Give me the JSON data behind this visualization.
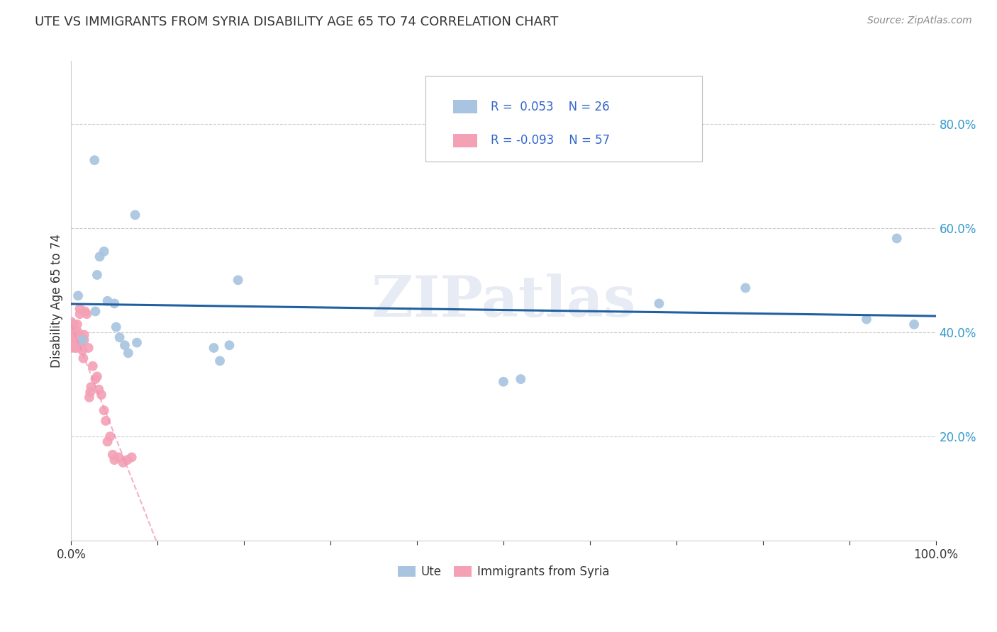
{
  "title": "UTE VS IMMIGRANTS FROM SYRIA DISABILITY AGE 65 TO 74 CORRELATION CHART",
  "source": "Source: ZipAtlas.com",
  "ylabel": "Disability Age 65 to 74",
  "xlabel": "",
  "xlim": [
    0,
    1.0
  ],
  "ylim": [
    0.0,
    0.92
  ],
  "xticks": [
    0.0,
    0.1,
    0.2,
    0.3,
    0.4,
    0.5,
    0.6,
    0.7,
    0.8,
    0.9,
    1.0
  ],
  "xticklabels": [
    "0.0%",
    "",
    "",
    "",
    "",
    "",
    "",
    "",
    "",
    "",
    "100.0%"
  ],
  "ytick_positions": [
    0.2,
    0.4,
    0.6,
    0.8
  ],
  "ytick_labels": [
    "20.0%",
    "40.0%",
    "60.0%",
    "80.0%"
  ],
  "legend_r_ute": "R =  0.053",
  "legend_n_ute": "N = 26",
  "legend_r_syria": "R = -0.093",
  "legend_n_syria": "N = 57",
  "ute_color": "#a8c4e0",
  "syria_color": "#f4a0b5",
  "ute_line_color": "#2060a0",
  "syria_line_color": "#f090b0",
  "watermark": "ZIPatlas",
  "background_color": "#ffffff",
  "ute_points_x": [
    0.008,
    0.013,
    0.027,
    0.028,
    0.03,
    0.033,
    0.038,
    0.042,
    0.05,
    0.052,
    0.056,
    0.062,
    0.066,
    0.074,
    0.076,
    0.165,
    0.172,
    0.183,
    0.193,
    0.5,
    0.52,
    0.68,
    0.78,
    0.92,
    0.955,
    0.975
  ],
  "ute_points_y": [
    0.47,
    0.385,
    0.73,
    0.44,
    0.51,
    0.545,
    0.555,
    0.46,
    0.455,
    0.41,
    0.39,
    0.375,
    0.36,
    0.625,
    0.38,
    0.37,
    0.345,
    0.375,
    0.5,
    0.305,
    0.31,
    0.455,
    0.485,
    0.425,
    0.58,
    0.415
  ],
  "syria_points_x": [
    0.0,
    0.0,
    0.0,
    0.0,
    0.0,
    0.0,
    0.001,
    0.001,
    0.001,
    0.001,
    0.002,
    0.002,
    0.002,
    0.003,
    0.003,
    0.003,
    0.004,
    0.004,
    0.005,
    0.005,
    0.006,
    0.006,
    0.006,
    0.007,
    0.007,
    0.008,
    0.008,
    0.009,
    0.01,
    0.01,
    0.011,
    0.012,
    0.013,
    0.014,
    0.015,
    0.015,
    0.016,
    0.018,
    0.02,
    0.021,
    0.022,
    0.023,
    0.025,
    0.028,
    0.03,
    0.032,
    0.035,
    0.038,
    0.04,
    0.042,
    0.045,
    0.048,
    0.05,
    0.055,
    0.06,
    0.065,
    0.07
  ],
  "syria_points_y": [
    0.42,
    0.41,
    0.41,
    0.4,
    0.385,
    0.37,
    0.39,
    0.385,
    0.382,
    0.375,
    0.4,
    0.39,
    0.38,
    0.415,
    0.405,
    0.375,
    0.39,
    0.37,
    0.4,
    0.385,
    0.39,
    0.38,
    0.37,
    0.415,
    0.385,
    0.4,
    0.38,
    0.375,
    0.445,
    0.435,
    0.39,
    0.38,
    0.365,
    0.35,
    0.395,
    0.385,
    0.44,
    0.435,
    0.37,
    0.275,
    0.285,
    0.295,
    0.335,
    0.31,
    0.315,
    0.29,
    0.28,
    0.25,
    0.23,
    0.19,
    0.2,
    0.165,
    0.155,
    0.16,
    0.15,
    0.155,
    0.16
  ]
}
